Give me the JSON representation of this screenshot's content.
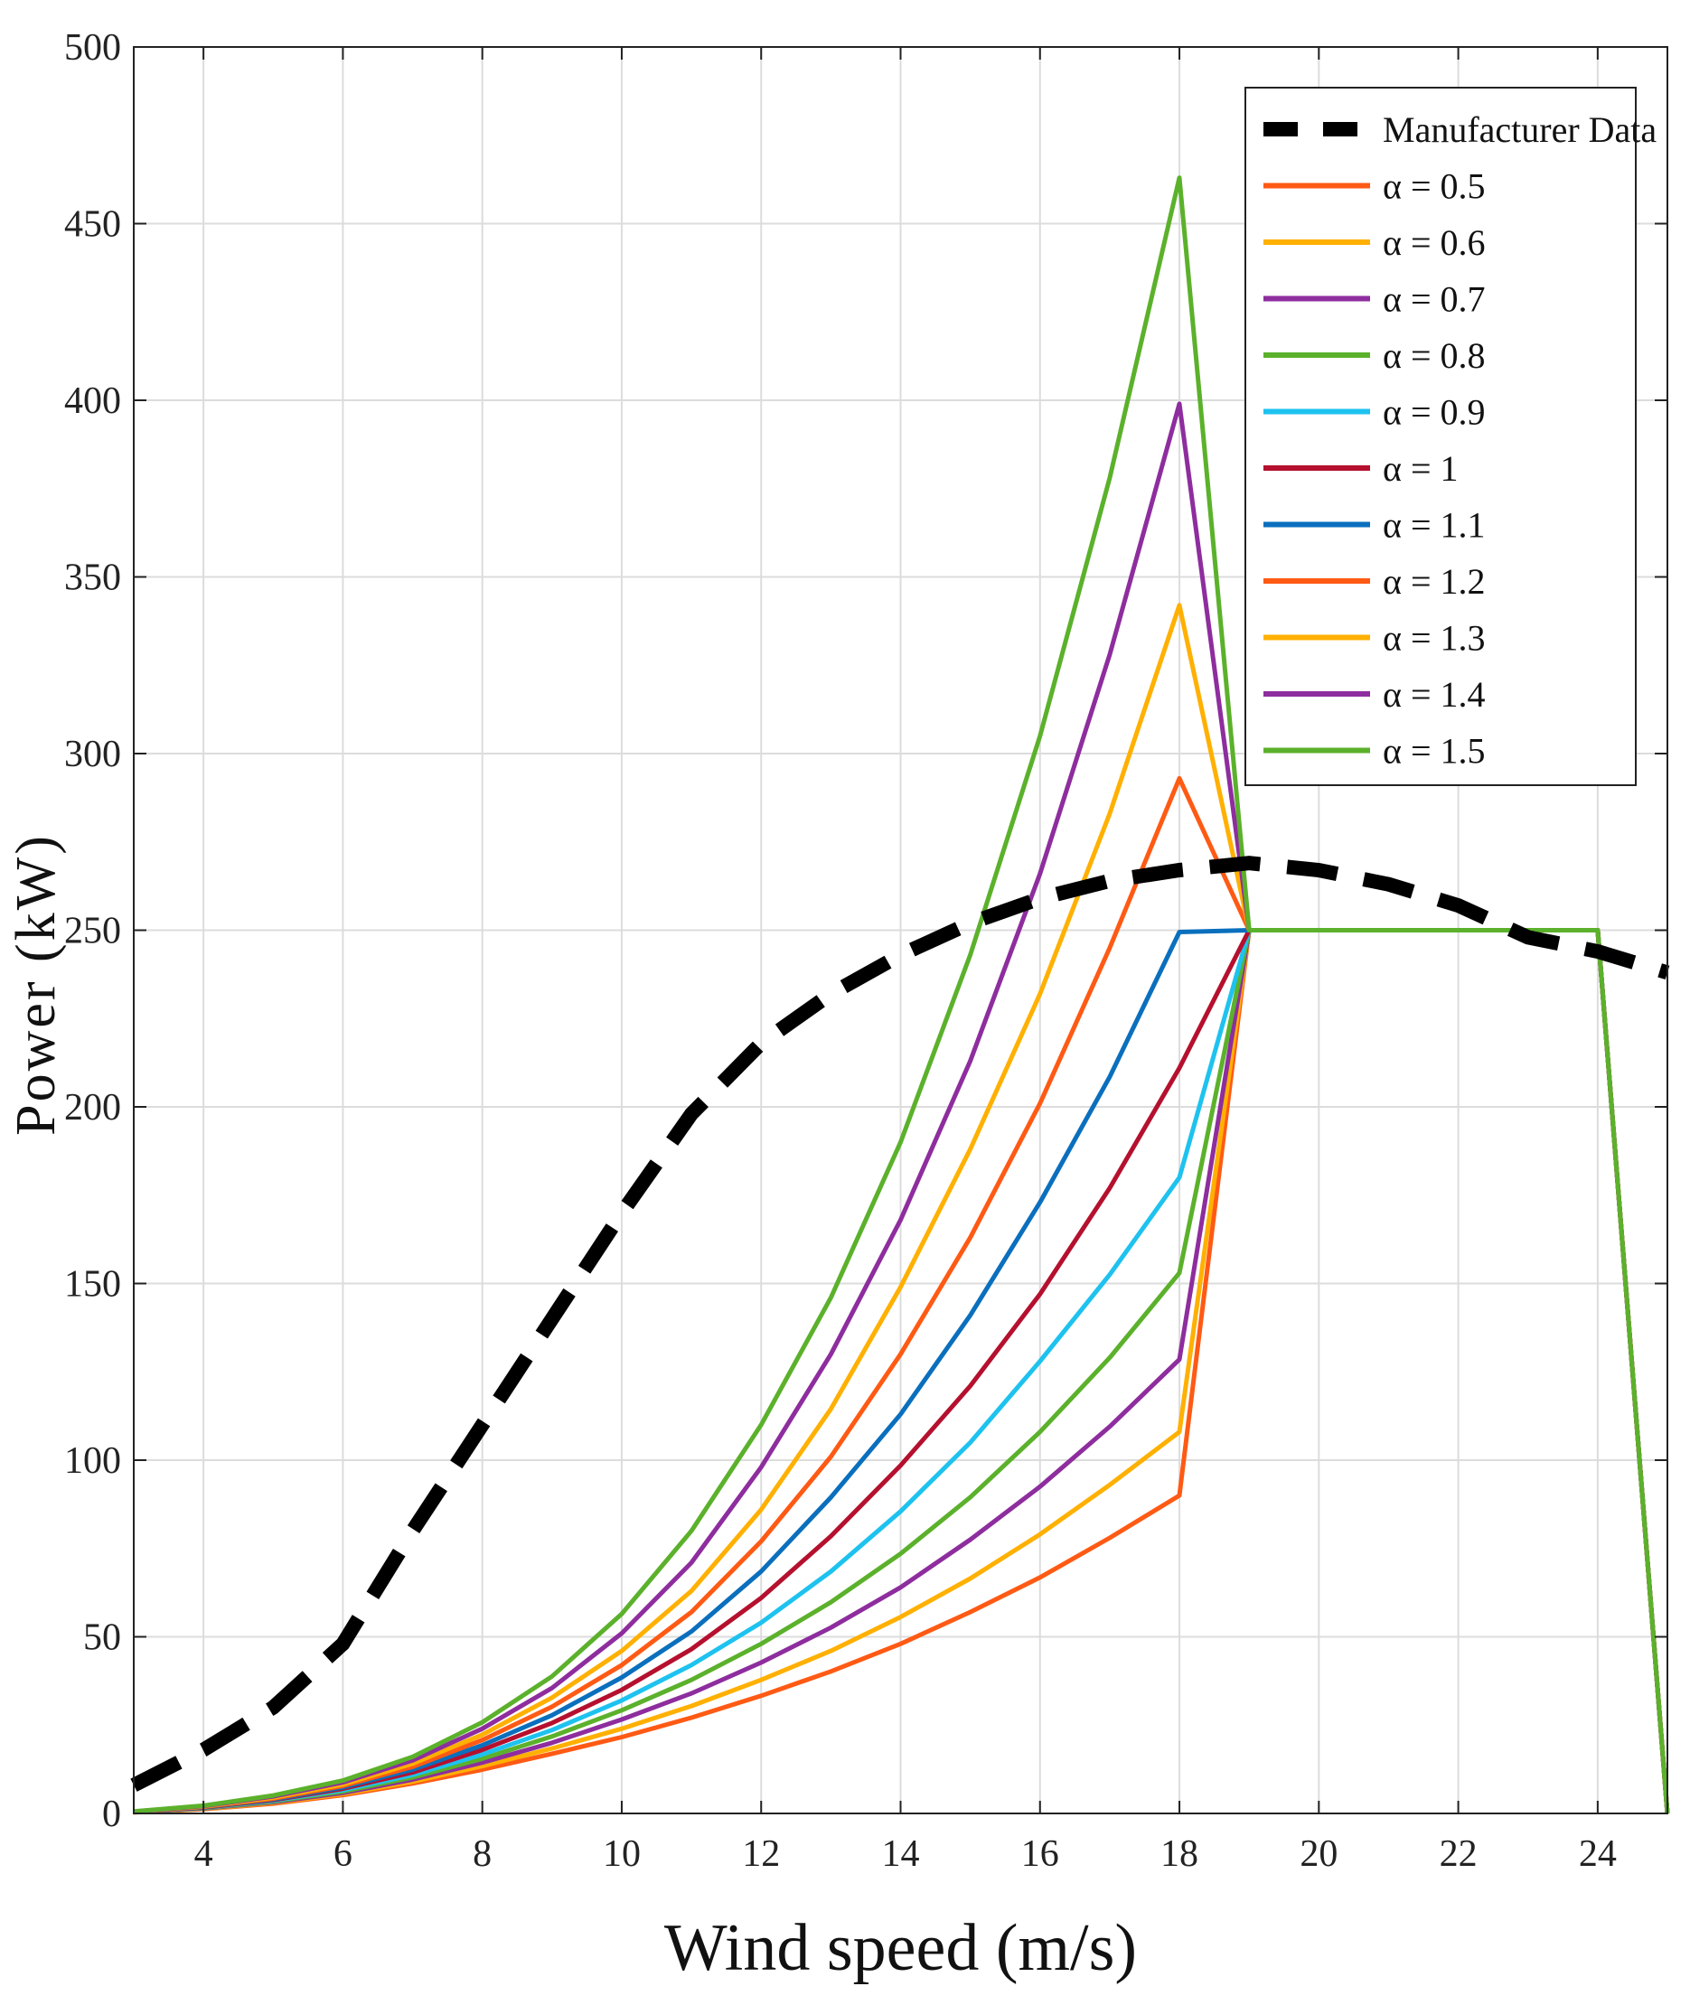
{
  "chart_data": {
    "type": "line",
    "title": "",
    "xlabel": "Wind speed (m/s)",
    "ylabel": "Power (kW)",
    "xlim": [
      3,
      25
    ],
    "ylim": [
      0,
      500
    ],
    "xticks": [
      4,
      6,
      8,
      10,
      12,
      14,
      16,
      18,
      20,
      22,
      24
    ],
    "yticks": [
      0,
      50,
      100,
      150,
      200,
      250,
      300,
      350,
      400,
      450,
      500
    ],
    "grid": true,
    "legend_position": "top-right",
    "colors": {
      "manufacturer": "#000000",
      "orange": "#ff5a14",
      "yellow": "#ffb000",
      "purple": "#8e2d9e",
      "green": "#5bb12b",
      "cyan": "#1ec2ef",
      "red": "#b5102e",
      "blue": "#0a6fbd"
    },
    "x": [
      3,
      4,
      5,
      6,
      7,
      8,
      9,
      10,
      11,
      12,
      13,
      14,
      15,
      16,
      17,
      18,
      19,
      20,
      21,
      22,
      23,
      24,
      25
    ],
    "manufacturer": {
      "name": "Manufacturer Data",
      "x": [
        3,
        4,
        5,
        6,
        7,
        8,
        9,
        10,
        11,
        12,
        13,
        14,
        15,
        16,
        17,
        18,
        19,
        20,
        21,
        22,
        23,
        24,
        25
      ],
      "values": [
        8,
        18,
        30,
        48,
        80,
        110,
        140,
        170,
        198,
        218,
        232,
        243,
        252,
        259,
        264,
        267,
        269,
        267,
        263,
        257,
        248,
        244,
        238
      ]
    },
    "series": [
      {
        "name": "α = 0.5",
        "color": "orange",
        "values": [
          0.3,
          1.2,
          2.8,
          5.2,
          8.5,
          12.4,
          16.9,
          21.6,
          27.1,
          33.3,
          40.2,
          48.0,
          57.0,
          66.8,
          78.0,
          90.0,
          250,
          250,
          250,
          250,
          250,
          250,
          0
        ]
      },
      {
        "name": "α = 0.6",
        "color": "yellow",
        "values": [
          0.3,
          1.3,
          3.0,
          5.5,
          9.0,
          13.4,
          18.4,
          24.0,
          30.4,
          37.8,
          46.0,
          55.6,
          66.5,
          79.0,
          93.0,
          108.0,
          250,
          250,
          250,
          250,
          250,
          250,
          0
        ]
      },
      {
        "name": "α = 0.7",
        "color": "purple",
        "values": [
          0.4,
          1.4,
          3.2,
          5.8,
          9.6,
          14.4,
          20.0,
          26.6,
          34.0,
          42.7,
          52.6,
          64.0,
          77.5,
          92.5,
          109.5,
          128.5,
          250,
          250,
          250,
          250,
          250,
          250,
          0
        ]
      },
      {
        "name": "α = 0.8",
        "color": "green",
        "values": [
          0.4,
          1.5,
          3.4,
          6.2,
          10.2,
          15.5,
          21.8,
          29.2,
          37.8,
          48.0,
          59.8,
          73.5,
          89.5,
          108.0,
          129.0,
          153.0,
          250,
          250,
          250,
          250,
          250,
          250,
          0
        ]
      },
      {
        "name": "α = 0.9",
        "color": "cyan",
        "values": [
          0.4,
          1.6,
          3.6,
          6.6,
          10.9,
          16.7,
          23.6,
          32.0,
          42.0,
          54.0,
          68.5,
          85.5,
          105.0,
          128.0,
          152.5,
          180.0,
          250,
          250,
          250,
          250,
          250,
          250,
          0
        ]
      },
      {
        "name": "α = 1",
        "color": "red",
        "values": [
          0.4,
          1.7,
          3.8,
          7.0,
          11.6,
          18.0,
          25.6,
          35.0,
          46.5,
          61.0,
          78.5,
          98.5,
          121.0,
          147.0,
          177.0,
          211.0,
          250,
          250,
          250,
          250,
          250,
          250,
          0
        ]
      },
      {
        "name": "α = 1.1",
        "color": "blue",
        "values": [
          0.5,
          1.8,
          4.0,
          7.4,
          12.4,
          19.3,
          27.8,
          38.5,
          51.5,
          68.5,
          89.5,
          113.0,
          141.0,
          173.0,
          208.5,
          249.5,
          250,
          250,
          250,
          250,
          250,
          250,
          0
        ]
      },
      {
        "name": "α = 1.2",
        "color": "orange",
        "values": [
          0.5,
          1.9,
          4.2,
          7.8,
          13.2,
          20.8,
          30.2,
          42.0,
          57.0,
          77.0,
          101.0,
          130.0,
          163.0,
          201.0,
          245.0,
          293.0,
          250,
          250,
          250,
          250,
          250,
          250,
          0
        ]
      },
      {
        "name": "α = 1.3",
        "color": "yellow",
        "values": [
          0.5,
          2.0,
          4.5,
          8.2,
          14.1,
          22.3,
          32.8,
          46.0,
          63.0,
          86.0,
          114.5,
          149.0,
          188.0,
          232.0,
          283.0,
          342.0,
          250,
          250,
          250,
          250,
          250,
          250,
          0
        ]
      },
      {
        "name": "α = 1.4",
        "color": "purple",
        "values": [
          0.5,
          2.1,
          4.8,
          8.8,
          15.0,
          24.0,
          35.5,
          51.0,
          71.0,
          98.0,
          130.0,
          168.0,
          213.0,
          266.0,
          328.0,
          399.0,
          250,
          250,
          250,
          250,
          250,
          250,
          0
        ]
      },
      {
        "name": "α = 1.5",
        "color": "green",
        "values": [
          0.6,
          2.2,
          5.1,
          9.3,
          16.0,
          25.8,
          38.8,
          56.5,
          80.0,
          110.0,
          146.0,
          190.0,
          243.0,
          305.0,
          378.0,
          463.0,
          250,
          250,
          250,
          250,
          250,
          250,
          0
        ]
      }
    ]
  }
}
